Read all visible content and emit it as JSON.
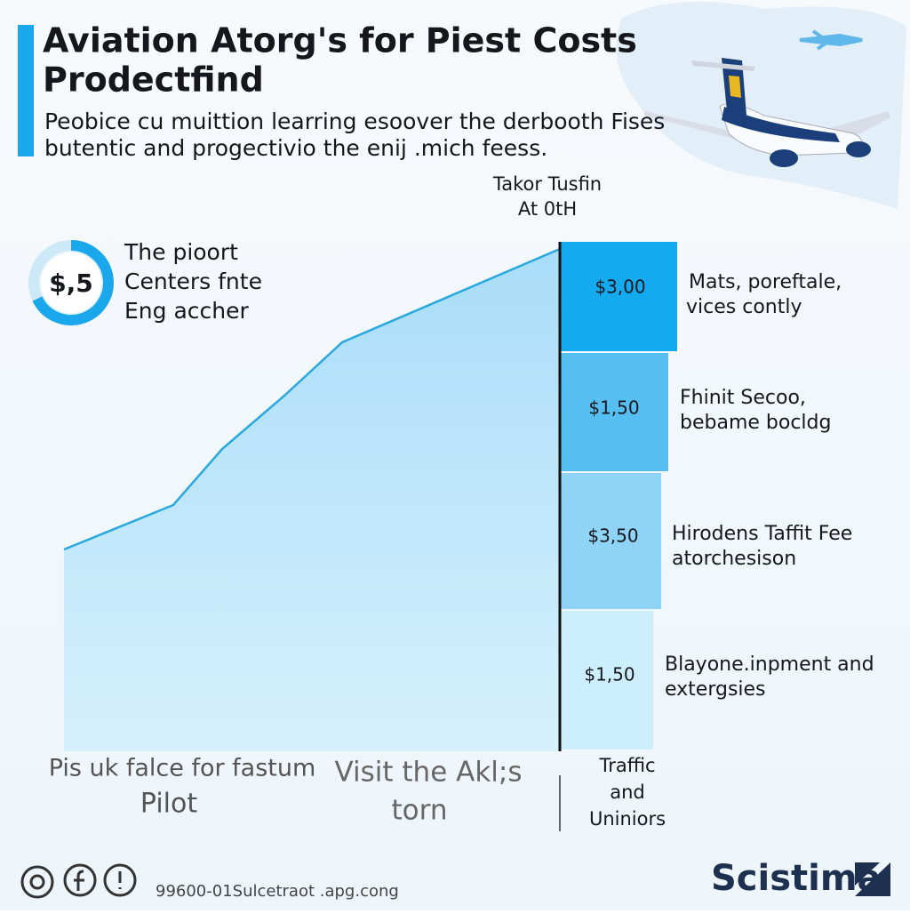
{
  "header": {
    "title": [
      "Aviation Atorg's for Piest Costs",
      "Prodectfind"
    ],
    "subtitle": [
      "Peobice cu muittion learring esoover the derbooth Fises",
      "butentic and progectivio the enij .mich feess."
    ]
  },
  "gauge": {
    "value": "$,5",
    "text": [
      "The pioort",
      "Centers fnte",
      "Eng accher"
    ]
  },
  "bars_header": [
    "Takor Tusfin",
    "At 0tH"
  ],
  "bars": [
    {
      "label": "$3,00",
      "text": [
        "Mats, poreftale,",
        "vices contly"
      ]
    },
    {
      "label": "$1,50",
      "text": [
        "Fhinit Secoo,",
        "bebame bocldg"
      ]
    },
    {
      "label": "$3,50",
      "text": [
        "Hirodens Taffit Fee",
        "atorchesison"
      ]
    },
    {
      "label": "$1,50",
      "text": [
        "Blayone.inpment and",
        "extergsies"
      ]
    }
  ],
  "bottom": {
    "left": [
      "Pis uk falce for fastum",
      "Pilot"
    ],
    "middle": [
      "Visit the Akl;s",
      "torn"
    ],
    "right": [
      "Traffic",
      "and",
      "Uniniors"
    ]
  },
  "footer": {
    "url": "99600-01Sulcetraot .apg.cong",
    "brand": "Scistima"
  }
}
